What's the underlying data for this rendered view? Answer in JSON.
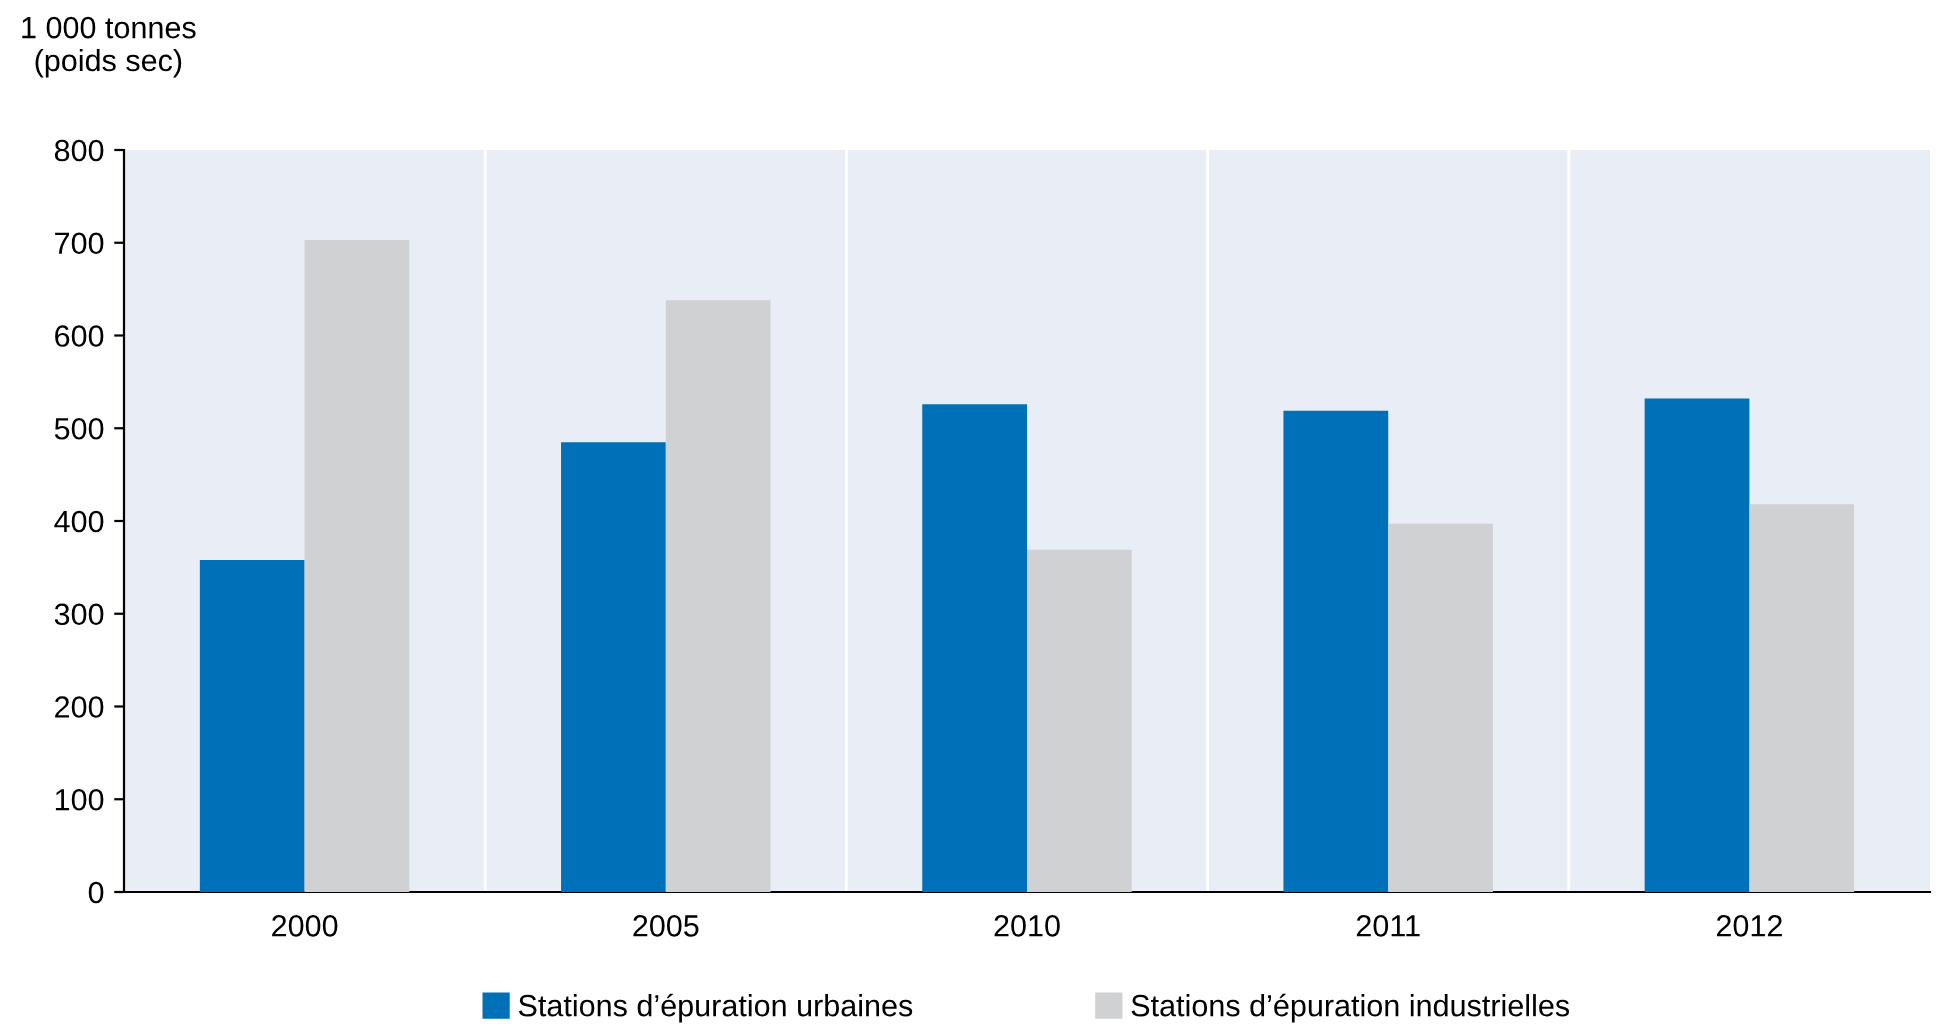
{
  "chart_data": {
    "type": "bar",
    "ylabel": "1 000 tonnes\n(poids sec)",
    "categories": [
      "2000",
      "2005",
      "2010",
      "2011",
      "2012"
    ],
    "series": [
      {
        "name": "Stations d’épuration urbaines",
        "color": "#0070b8",
        "values": [
          358,
          485,
          526,
          519,
          532
        ]
      },
      {
        "name": "Stations d’épuration industrielles",
        "color": "#d0d1d3",
        "values": [
          703,
          638,
          369,
          397,
          418
        ]
      }
    ],
    "ylim": [
      0,
      800
    ],
    "yticks": [
      0,
      100,
      200,
      300,
      400,
      500,
      600,
      700,
      800
    ],
    "grid": "x",
    "legend": "bottom"
  }
}
